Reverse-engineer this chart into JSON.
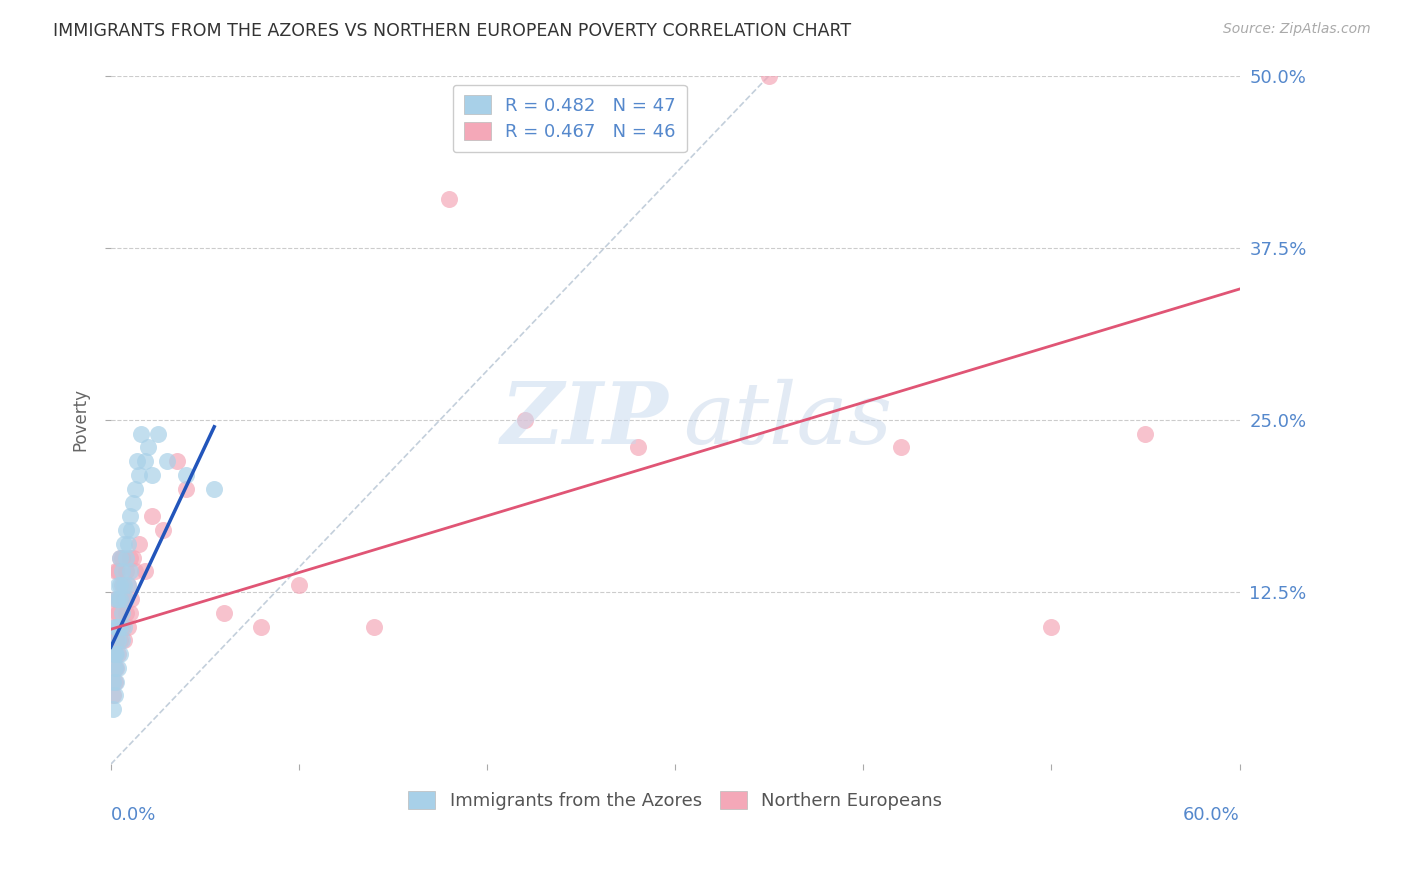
{
  "title": "IMMIGRANTS FROM THE AZORES VS NORTHERN EUROPEAN POVERTY CORRELATION CHART",
  "source": "Source: ZipAtlas.com",
  "ylabel": "Poverty",
  "ytick_labels": [
    "12.5%",
    "25.0%",
    "37.5%",
    "50.0%"
  ],
  "ytick_values": [
    0.125,
    0.25,
    0.375,
    0.5
  ],
  "xlim": [
    0,
    0.6
  ],
  "ylim": [
    0,
    0.5
  ],
  "legend1_r": "R = 0.482",
  "legend1_n": "N = 47",
  "legend2_r": "R = 0.467",
  "legend2_n": "N = 46",
  "series1_name": "Immigrants from the Azores",
  "series2_name": "Northern Europeans",
  "color1": "#A8D0E8",
  "color2": "#F4A8B8",
  "trendline1_color": "#2255BB",
  "trendline2_color": "#E05575",
  "title_color": "#333333",
  "axis_label_color": "#5588CC",
  "background_color": "#FFFFFF",
  "grid_color": "#CCCCCC",
  "azores_x": [
    0.001,
    0.001,
    0.001,
    0.002,
    0.002,
    0.002,
    0.002,
    0.003,
    0.003,
    0.003,
    0.003,
    0.004,
    0.004,
    0.004,
    0.004,
    0.004,
    0.005,
    0.005,
    0.005,
    0.005,
    0.005,
    0.006,
    0.006,
    0.006,
    0.007,
    0.007,
    0.007,
    0.008,
    0.008,
    0.008,
    0.009,
    0.009,
    0.01,
    0.01,
    0.011,
    0.012,
    0.013,
    0.014,
    0.015,
    0.016,
    0.018,
    0.02,
    0.022,
    0.025,
    0.03,
    0.04,
    0.055
  ],
  "azores_y": [
    0.04,
    0.06,
    0.08,
    0.05,
    0.07,
    0.08,
    0.1,
    0.06,
    0.08,
    0.1,
    0.12,
    0.07,
    0.09,
    0.1,
    0.12,
    0.13,
    0.08,
    0.1,
    0.12,
    0.13,
    0.15,
    0.09,
    0.11,
    0.14,
    0.1,
    0.13,
    0.16,
    0.12,
    0.15,
    0.17,
    0.13,
    0.16,
    0.14,
    0.18,
    0.17,
    0.19,
    0.2,
    0.22,
    0.21,
    0.24,
    0.22,
    0.23,
    0.21,
    0.24,
    0.22,
    0.21,
    0.2
  ],
  "northern_x": [
    0.001,
    0.001,
    0.002,
    0.002,
    0.002,
    0.003,
    0.003,
    0.003,
    0.003,
    0.004,
    0.004,
    0.004,
    0.005,
    0.005,
    0.005,
    0.006,
    0.006,
    0.006,
    0.007,
    0.007,
    0.008,
    0.008,
    0.009,
    0.009,
    0.01,
    0.01,
    0.011,
    0.012,
    0.013,
    0.015,
    0.018,
    0.022,
    0.028,
    0.035,
    0.04,
    0.06,
    0.08,
    0.1,
    0.14,
    0.18,
    0.22,
    0.28,
    0.35,
    0.42,
    0.5,
    0.55
  ],
  "northern_y": [
    0.05,
    0.09,
    0.06,
    0.08,
    0.11,
    0.07,
    0.09,
    0.12,
    0.14,
    0.08,
    0.11,
    0.14,
    0.09,
    0.12,
    0.15,
    0.1,
    0.13,
    0.15,
    0.09,
    0.12,
    0.11,
    0.14,
    0.1,
    0.13,
    0.11,
    0.15,
    0.12,
    0.15,
    0.14,
    0.16,
    0.14,
    0.18,
    0.17,
    0.22,
    0.2,
    0.11,
    0.1,
    0.13,
    0.1,
    0.41,
    0.25,
    0.23,
    0.5,
    0.23,
    0.1,
    0.24
  ],
  "ref_line_x": [
    0.0,
    0.35
  ],
  "ref_line_y": [
    0.0,
    0.5
  ],
  "trendline1_x": [
    0.0,
    0.055
  ],
  "trendline1_y": [
    0.085,
    0.245
  ],
  "trendline2_x": [
    0.0,
    0.6
  ],
  "trendline2_y": [
    0.098,
    0.345
  ]
}
